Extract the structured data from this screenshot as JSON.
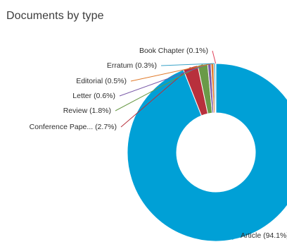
{
  "header": {
    "title": "Documents by type"
  },
  "chart_data": {
    "type": "pie",
    "variant": "donut",
    "title": "Documents by type",
    "slices": [
      {
        "label": "Article (94.1%)",
        "value": 94.1,
        "color": "#00a0d6"
      },
      {
        "label": "Conference Pape... (2.7%)",
        "value": 2.7,
        "color": "#b8303c"
      },
      {
        "label": "Review (1.8%)",
        "value": 1.8,
        "color": "#6a9a48"
      },
      {
        "label": "Letter (0.6%)",
        "value": 0.6,
        "color": "#7a5aa8"
      },
      {
        "label": "Editorial (0.5%)",
        "value": 0.5,
        "color": "#e07a2a"
      },
      {
        "label": "Erratum (0.3%)",
        "value": 0.3,
        "color": "#3aa3c8"
      },
      {
        "label": "Book Chapter (0.1%)",
        "value": 0.1,
        "color": "#e0405a"
      }
    ]
  }
}
